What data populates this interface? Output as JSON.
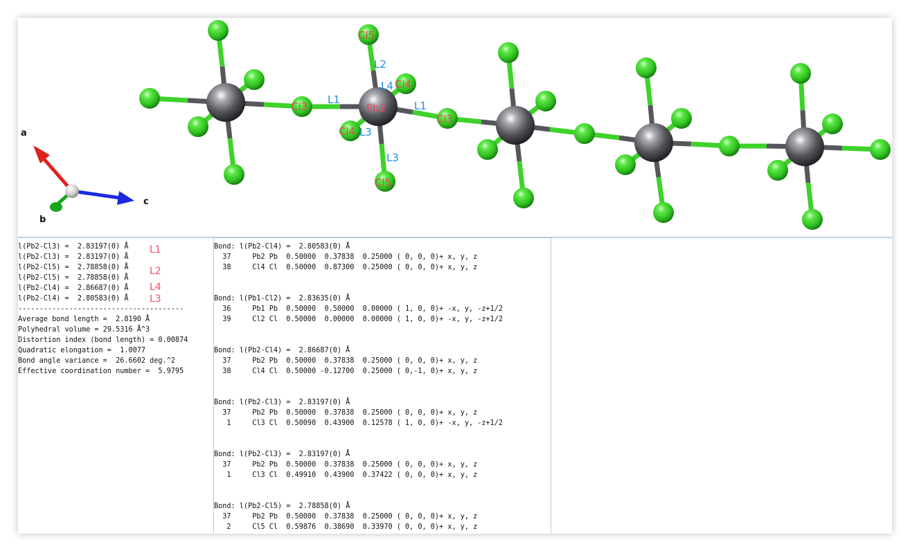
{
  "structure_view": {
    "atom_labels": {
      "cl5_top": "Cl5",
      "cl4_right": "Cl4",
      "pb2": "Pb2",
      "cl3_left": "Cl3",
      "cl3_right": "Cl3",
      "cl4_left": "Cl4",
      "cl5_bottom": "Cl5"
    },
    "bond_labels": {
      "l2": "L2",
      "l4": "L4",
      "l1_left": "L1",
      "l1_right": "L1",
      "l3_near": "L3",
      "l3_far": "L3"
    },
    "axes": {
      "a": "a",
      "b": "b",
      "c": "c"
    },
    "colors": {
      "pb": "#55575c",
      "cl": "#3ed22a",
      "bond_pb": "#55575c",
      "bond_cl": "#3ed22a",
      "axis_a": "#e0201c",
      "axis_b": "#1aa61a",
      "axis_c": "#1a2ae0"
    }
  },
  "left_panel": {
    "bonds": [
      {
        "text": "l(Pb2-Cl3) =  2.83197(0) Å",
        "tag": "L1"
      },
      {
        "text": "l(Pb2-Cl3) =  2.83197(0) Å",
        "tag": ""
      },
      {
        "text": "l(Pb2-Cl5) =  2.78858(0) Å",
        "tag": "L2"
      },
      {
        "text": "l(Pb2-Cl5) =  2.78858(0) Å",
        "tag": ""
      },
      {
        "text": "l(Pb2-Cl4) =  2.86687(0) Å",
        "tag": "L4"
      },
      {
        "text": "l(Pb2-Cl4) =  2.80583(0) Å",
        "tag": "L3"
      }
    ],
    "separator": "---------------------------------------",
    "stats": [
      "Average bond length =  2.8190 Å",
      "Polyhedral volume = 29.5316 Å^3",
      "Distortion index (bond length) = 0.00874",
      "Quadratic elongation =  1.0077",
      "Bond angle variance =  26.6602 deg.^2",
      "Effective coordination number =  5.9795"
    ]
  },
  "mid_panel": {
    "blocks": [
      {
        "header": "Bond: l(Pb2-Cl4) =  2.80583(0) Å",
        "rows": [
          "  37     Pb2 Pb  0.50000  0.37838  0.25000 ( 0, 0, 0)+ x, y, z",
          "  38     Cl4 Cl  0.50000  0.87300  0.25000 ( 0, 0, 0)+ x, y, z"
        ]
      },
      {
        "header": "Bond: l(Pb1-Cl2) =  2.83635(0) Å",
        "rows": [
          "  36     Pb1 Pb  0.50000  0.50000  0.00000 ( 1, 0, 0)+ -x, y, -z+1/2",
          "  39     Cl2 Cl  0.50000  0.00000  0.00000 ( 1, 0, 0)+ -x, y, -z+1/2"
        ]
      },
      {
        "header": "Bond: l(Pb2-Cl4) =  2.86687(0) Å",
        "rows": [
          "  37     Pb2 Pb  0.50000  0.37838  0.25000 ( 0, 0, 0)+ x, y, z",
          "  38     Cl4 Cl  0.50000 -0.12700  0.25000 ( 0,-1, 0)+ x, y, z"
        ]
      },
      {
        "header": "Bond: l(Pb2-Cl3) =  2.83197(0) Å",
        "rows": [
          "  37     Pb2 Pb  0.50000  0.37838  0.25000 ( 0, 0, 0)+ x, y, z",
          "   1     Cl3 Cl  0.50090  0.43900  0.12578 ( 1, 0, 0)+ -x, y, -z+1/2"
        ]
      },
      {
        "header": "Bond: l(Pb2-Cl3) =  2.83197(0) Å",
        "rows": [
          "  37     Pb2 Pb  0.50000  0.37838  0.25000 ( 0, 0, 0)+ x, y, z",
          "   1     Cl3 Cl  0.49910  0.43900  0.37422 ( 0, 0, 0)+ x, y, z"
        ]
      },
      {
        "header": "Bond: l(Pb2-Cl5) =  2.78858(0) Å",
        "rows": [
          "  37     Pb2 Pb  0.50000  0.37838  0.25000 ( 0, 0, 0)+ x, y, z",
          "   2     Cl5 Cl  0.59876  0.38690  0.33970 ( 0, 0, 0)+ x, y, z"
        ]
      }
    ]
  }
}
